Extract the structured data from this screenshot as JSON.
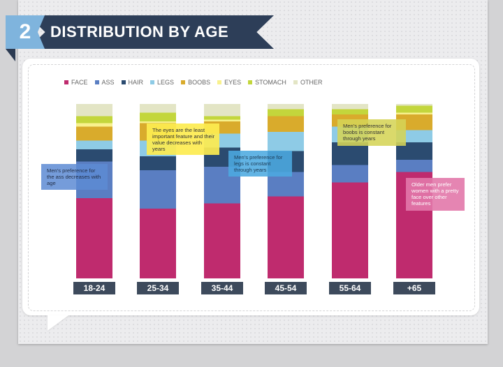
{
  "header": {
    "number": "2",
    "title": "DISTRIBUTION BY AGE"
  },
  "colors": {
    "background": "#d3d3d5",
    "title_banner": "#2d3e58",
    "badge": "#7fb4dd",
    "age_label_bg": "#3d4a5c"
  },
  "chart_data": {
    "type": "bar",
    "stacked": true,
    "percent_stacked": true,
    "categories": [
      "18-24",
      "25-34",
      "35-44",
      "45-54",
      "55-64",
      "+65"
    ],
    "series": [
      {
        "name": "FACE",
        "color": "#bf2b6e",
        "values": [
          46,
          40,
          43,
          47,
          55,
          61
        ]
      },
      {
        "name": "ASS",
        "color": "#5a7ec2",
        "values": [
          21,
          22,
          21,
          14,
          10,
          7
        ]
      },
      {
        "name": "HAIR",
        "color": "#2b4b70",
        "values": [
          7,
          8,
          11,
          12,
          13,
          10
        ]
      },
      {
        "name": "LEGS",
        "color": "#8ecbe6",
        "values": [
          5,
          9,
          8,
          11,
          9,
          7
        ]
      },
      {
        "name": "BOOBS",
        "color": "#d9ab2c",
        "values": [
          8,
          10,
          7,
          9,
          7,
          9
        ]
      },
      {
        "name": "EYES",
        "color": "#f8f18e",
        "values": [
          2,
          1,
          1,
          0,
          0,
          1
        ]
      },
      {
        "name": "STOMACH",
        "color": "#c3d63c",
        "values": [
          4,
          5,
          2,
          4,
          3,
          4
        ]
      },
      {
        "name": "OTHER",
        "color": "#e3e5c5",
        "values": [
          7,
          5,
          7,
          3,
          3,
          1
        ]
      }
    ],
    "annotations": [
      {
        "id": "ass",
        "text": "Men's preference for the ass decreases with age"
      },
      {
        "id": "eyes",
        "text": "The eyes are the least important feature and their value decreases with years"
      },
      {
        "id": "legs",
        "text": "Men's preference for legs is constant through years"
      },
      {
        "id": "boobs",
        "text": "Men's preference for boobs is constant through years"
      },
      {
        "id": "face",
        "text": "Older men prefer women with a pretty face over other features"
      }
    ]
  }
}
